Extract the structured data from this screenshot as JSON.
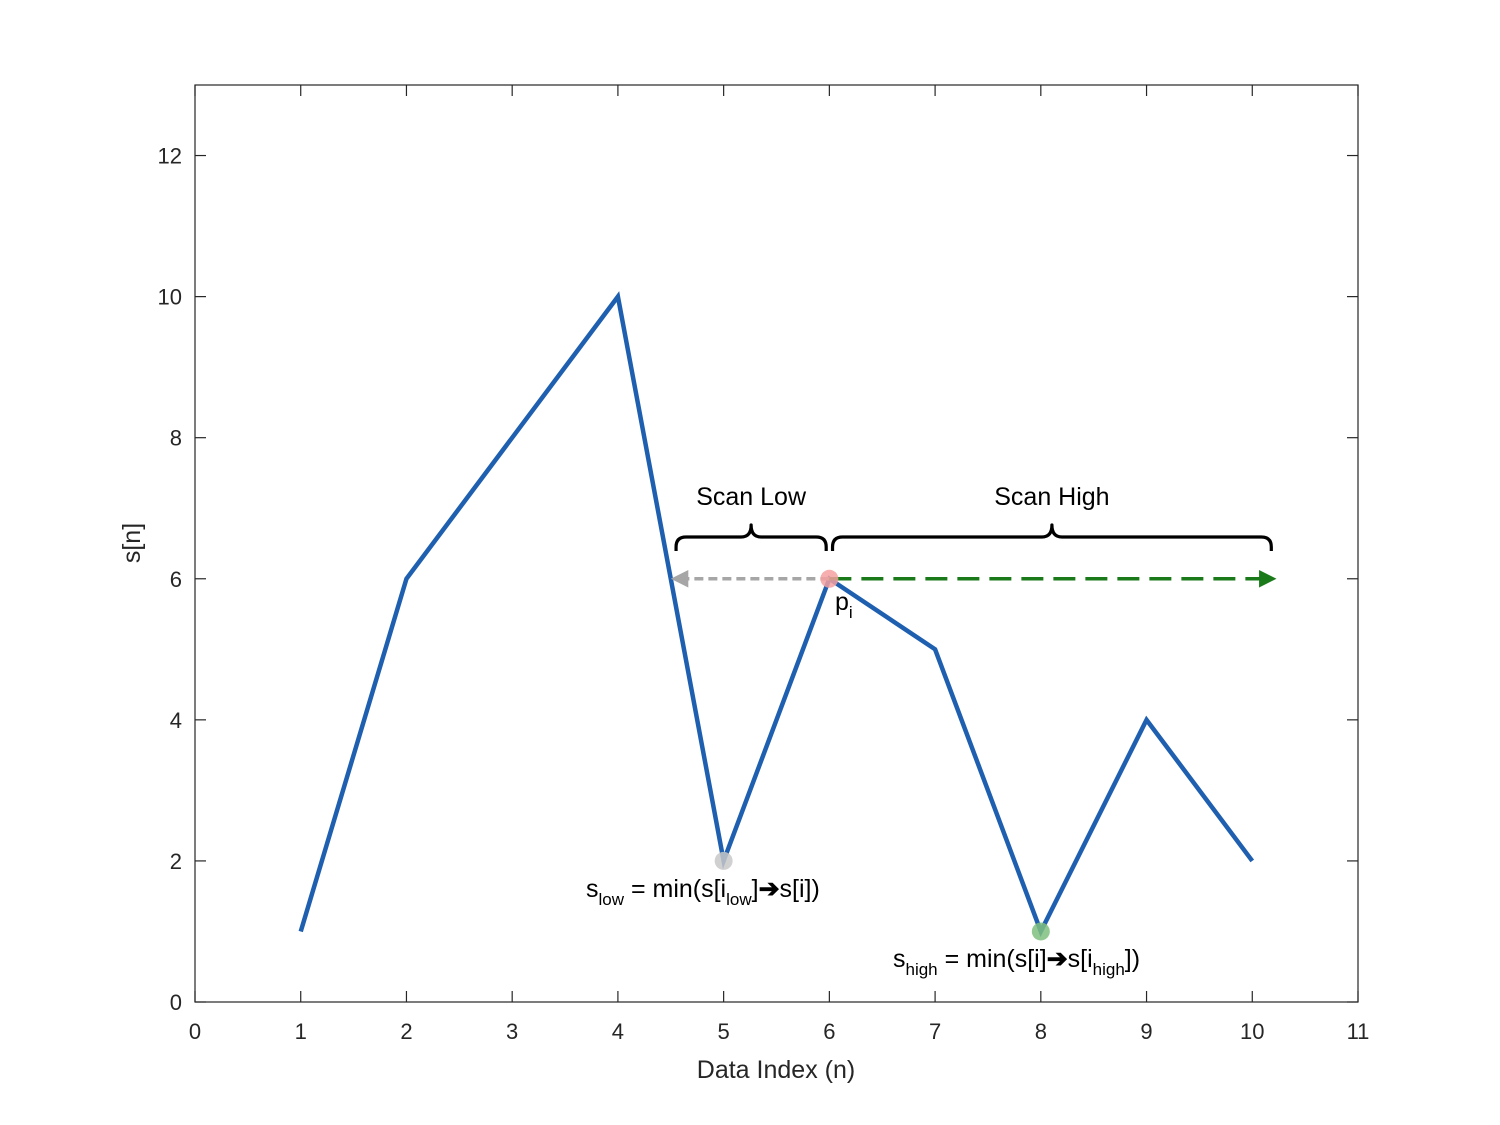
{
  "chart_data": {
    "type": "line",
    "xlabel": "Data Index (n)",
    "ylabel": "s[n]",
    "xlim": [
      0,
      11
    ],
    "ylim": [
      0,
      13
    ],
    "x_ticks": [
      0,
      1,
      2,
      3,
      4,
      5,
      6,
      7,
      8,
      9,
      10,
      11
    ],
    "y_ticks": [
      0,
      2,
      4,
      6,
      8,
      10,
      12
    ],
    "grid": false,
    "series": [
      {
        "x": [
          1,
          2,
          3,
          4,
          5,
          6,
          7,
          8,
          9,
          10
        ],
        "values": [
          1,
          6,
          8,
          10,
          2,
          6,
          5,
          1,
          4,
          2
        ],
        "color": "#1f5fb0"
      }
    ],
    "markers": [
      {
        "name": "p_i",
        "x": 6,
        "y": 6,
        "color": "#f4a0a0"
      },
      {
        "name": "s_low",
        "x": 5,
        "y": 2,
        "color": "#c8c8c8"
      },
      {
        "name": "s_high",
        "x": 8,
        "y": 1,
        "color": "#7fbf7f"
      }
    ],
    "scan_arrows": [
      {
        "name": "scan-low",
        "from": [
          6,
          6
        ],
        "to": [
          4.55,
          6
        ],
        "color": "#a6a6a6",
        "style": "dashed"
      },
      {
        "name": "scan-high",
        "from": [
          6,
          6
        ],
        "to": [
          10.18,
          6
        ],
        "color": "#1a7a1a",
        "style": "dashed"
      }
    ],
    "braces": [
      {
        "name": "scan-low",
        "x_start": 4.55,
        "x_end": 5.97,
        "label": "Scan Low"
      },
      {
        "name": "scan-high",
        "x_start": 6.03,
        "x_end": 10.18,
        "label": "Scan High"
      }
    ],
    "annotations": {
      "p_i": {
        "base": "p",
        "sub": "i"
      },
      "s_low": {
        "s": "s",
        "low_sub": "low",
        "eq": " = min(s[i",
        "low_sub2": "low",
        "close1": "]",
        "arrow": "➔",
        "rest": "s[i])"
      },
      "s_high": {
        "s": "s",
        "high_sub": "high",
        "eq": " = min(s[i]",
        "arrow": "➔",
        "rest_a": "s[i",
        "high_sub2": "high",
        "rest_b": "])"
      }
    }
  }
}
